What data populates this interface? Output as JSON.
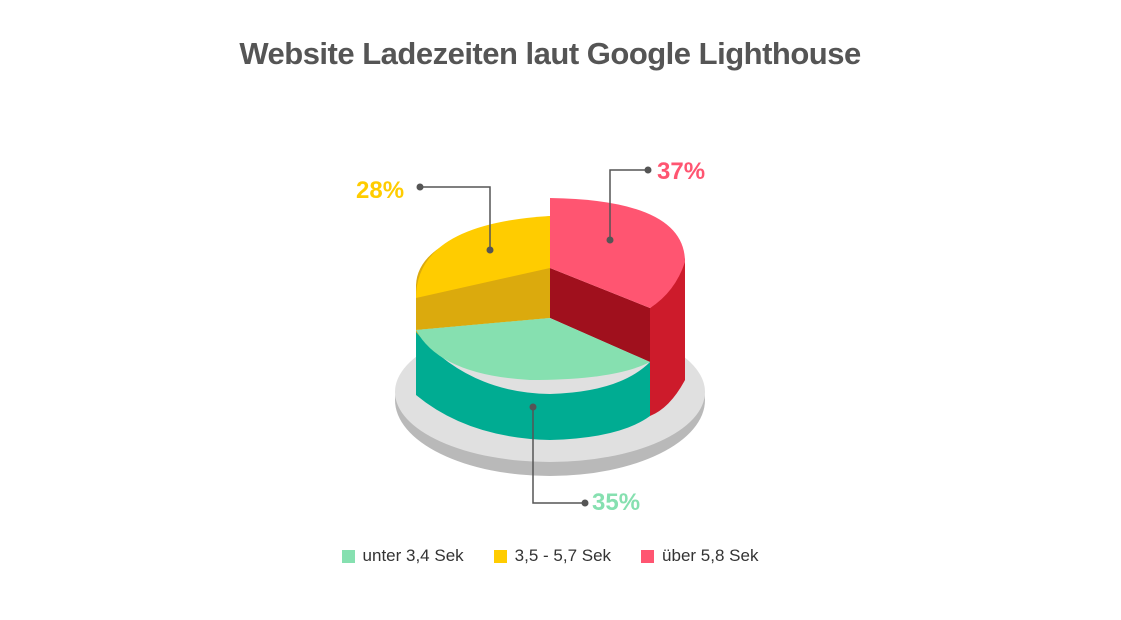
{
  "chart_data": {
    "type": "pie",
    "title": "Website Ladezeiten laut Google Lighthouse",
    "slices": [
      {
        "name": "unter 3,4 Sek",
        "value": 35,
        "label": "35%",
        "color": "#86e0b0",
        "side_color": "#00ac92"
      },
      {
        "name": "3,5 - 5,7 Sek",
        "value": 28,
        "label": "28%",
        "color": "#ffcc00",
        "side_color": "#dbaa0d"
      },
      {
        "name": "über 5,8 Sek",
        "value": 37,
        "label": "37%",
        "color": "#ff5571",
        "side_color": "#c8172c"
      }
    ],
    "legend_position": "bottom",
    "style": "3d"
  }
}
